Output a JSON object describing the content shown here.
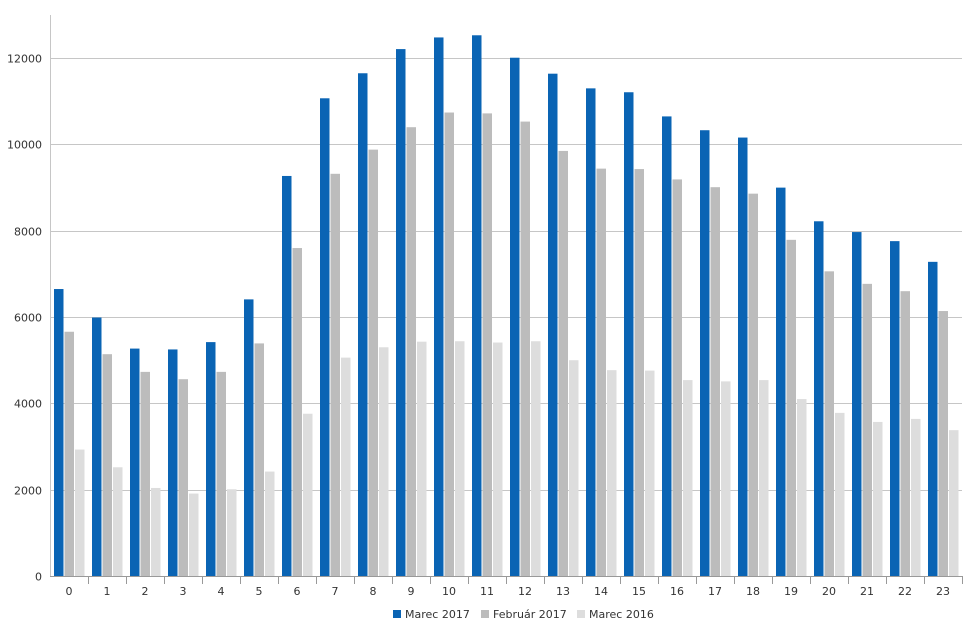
{
  "chart_data": {
    "type": "bar",
    "title": "",
    "xlabel": "",
    "ylabel": "",
    "categories": [
      "0",
      "1",
      "2",
      "3",
      "4",
      "5",
      "6",
      "7",
      "8",
      "9",
      "10",
      "11",
      "12",
      "13",
      "14",
      "15",
      "16",
      "17",
      "18",
      "19",
      "20",
      "21",
      "22",
      "23"
    ],
    "ylim": [
      0,
      13000
    ],
    "yticks": [
      0,
      2000,
      4000,
      6000,
      8000,
      10000,
      12000
    ],
    "grid": true,
    "legend_position": "bottom-center",
    "series": [
      {
        "name": "Marec 2017",
        "color": "#0a64b4",
        "values": [
          6650,
          5990,
          5270,
          5250,
          5420,
          6410,
          9270,
          11070,
          11650,
          12210,
          12480,
          12530,
          12010,
          11640,
          11300,
          11210,
          10650,
          10330,
          10160,
          9000,
          8220,
          7970,
          7760,
          7280
        ]
      },
      {
        "name": "Február 2017",
        "color": "#bcbcbc",
        "values": [
          5660,
          5140,
          4730,
          4560,
          4730,
          5390,
          7600,
          9320,
          9880,
          10400,
          10740,
          10720,
          10530,
          9850,
          9440,
          9430,
          9190,
          9010,
          8860,
          7790,
          7060,
          6770,
          6600,
          6140
        ]
      },
      {
        "name": "Marec 2016",
        "color": "#dddddd",
        "values": [
          2930,
          2520,
          2040,
          1910,
          2010,
          2420,
          3760,
          5060,
          5300,
          5430,
          5440,
          5410,
          5440,
          5000,
          4770,
          4760,
          4540,
          4510,
          4540,
          4100,
          3780,
          3570,
          3640,
          3380
        ]
      }
    ]
  }
}
